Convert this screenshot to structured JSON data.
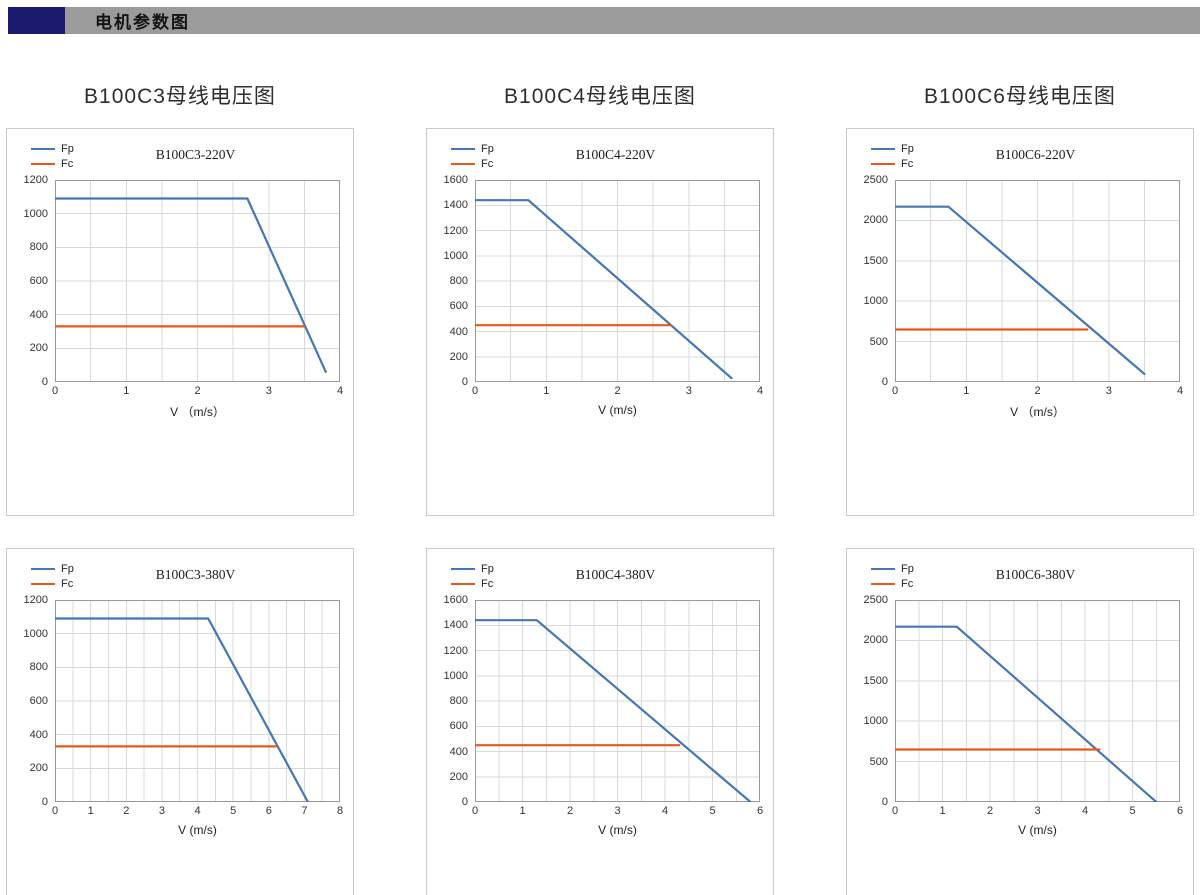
{
  "header": {
    "title": "电机参数图"
  },
  "sections": [
    {
      "title": "B100C3母线电压图"
    },
    {
      "title": "B100C4母线电压图"
    },
    {
      "title": "B100C6母线电压图"
    }
  ],
  "colors": {
    "fp": "#4576b5",
    "fc": "#e8581c",
    "grid": "#d9d9d9",
    "axis": "#9a9a9a",
    "header_block": "#1b1a6e",
    "header_bar": "#9b9b9b"
  },
  "chart_data": [
    {
      "type": "line",
      "title": "B100C3-220V",
      "xlabel": "V （m/s）",
      "xlim": [
        0,
        4
      ],
      "xtick": 1,
      "xgrid": 0.5,
      "ylim": [
        0,
        1200
      ],
      "ytick": 200,
      "series": [
        {
          "name": "Fp",
          "color": "#4576b5",
          "points": [
            [
              0,
              1090
            ],
            [
              2.7,
              1090
            ],
            [
              3.8,
              60
            ]
          ]
        },
        {
          "name": "Fc",
          "color": "#e8581c",
          "points": [
            [
              0,
              330
            ],
            [
              3.5,
              330
            ]
          ]
        }
      ]
    },
    {
      "type": "line",
      "title": "B100C4-220V",
      "xlabel": "V (m/s)",
      "xlim": [
        0,
        4
      ],
      "xtick": 1,
      "xgrid": 0.5,
      "ylim": [
        0,
        1600
      ],
      "ytick": 200,
      "series": [
        {
          "name": "Fp",
          "color": "#4576b5",
          "points": [
            [
              0,
              1440
            ],
            [
              0.75,
              1440
            ],
            [
              3.6,
              30
            ]
          ]
        },
        {
          "name": "Fc",
          "color": "#e8581c",
          "points": [
            [
              0,
              450
            ],
            [
              2.75,
              450
            ]
          ]
        }
      ]
    },
    {
      "type": "line",
      "title": "B100C6-220V",
      "xlabel": "V （m/s）",
      "xlim": [
        0,
        4
      ],
      "xtick": 1,
      "xgrid": 0.5,
      "ylim": [
        0,
        2500
      ],
      "ytick": 500,
      "series": [
        {
          "name": "Fp",
          "color": "#4576b5",
          "points": [
            [
              0,
              2170
            ],
            [
              0.75,
              2170
            ],
            [
              3.5,
              100
            ]
          ]
        },
        {
          "name": "Fc",
          "color": "#e8581c",
          "points": [
            [
              0,
              650
            ],
            [
              2.7,
              650
            ]
          ]
        }
      ]
    },
    {
      "type": "line",
      "title": "B100C3-380V",
      "xlabel": "V (m/s)",
      "xlim": [
        0,
        8
      ],
      "xtick": 1,
      "xgrid": 0.5,
      "ylim": [
        0,
        1200
      ],
      "ytick": 200,
      "series": [
        {
          "name": "Fp",
          "color": "#4576b5",
          "points": [
            [
              0,
              1090
            ],
            [
              4.3,
              1090
            ],
            [
              7.1,
              0
            ]
          ]
        },
        {
          "name": "Fc",
          "color": "#e8581c",
          "points": [
            [
              0,
              330
            ],
            [
              6.2,
              330
            ]
          ]
        }
      ]
    },
    {
      "type": "line",
      "title": "B100C4-380V",
      "xlabel": "V (m/s)",
      "xlim": [
        0,
        6
      ],
      "xtick": 1,
      "xgrid": 0.5,
      "ylim": [
        0,
        1600
      ],
      "ytick": 200,
      "series": [
        {
          "name": "Fp",
          "color": "#4576b5",
          "points": [
            [
              0,
              1440
            ],
            [
              1.3,
              1440
            ],
            [
              5.8,
              0
            ]
          ]
        },
        {
          "name": "Fc",
          "color": "#e8581c",
          "points": [
            [
              0,
              450
            ],
            [
              4.3,
              450
            ]
          ]
        }
      ]
    },
    {
      "type": "line",
      "title": "B100C6-380V",
      "xlabel": "V (m/s)",
      "xlim": [
        0,
        6
      ],
      "xtick": 1,
      "xgrid": 0.5,
      "ylim": [
        0,
        2500
      ],
      "ytick": 500,
      "series": [
        {
          "name": "Fp",
          "color": "#4576b5",
          "points": [
            [
              0,
              2170
            ],
            [
              1.3,
              2170
            ],
            [
              5.5,
              0
            ]
          ]
        },
        {
          "name": "Fc",
          "color": "#e8581c",
          "points": [
            [
              0,
              650
            ],
            [
              4.3,
              650
            ]
          ]
        }
      ]
    }
  ]
}
